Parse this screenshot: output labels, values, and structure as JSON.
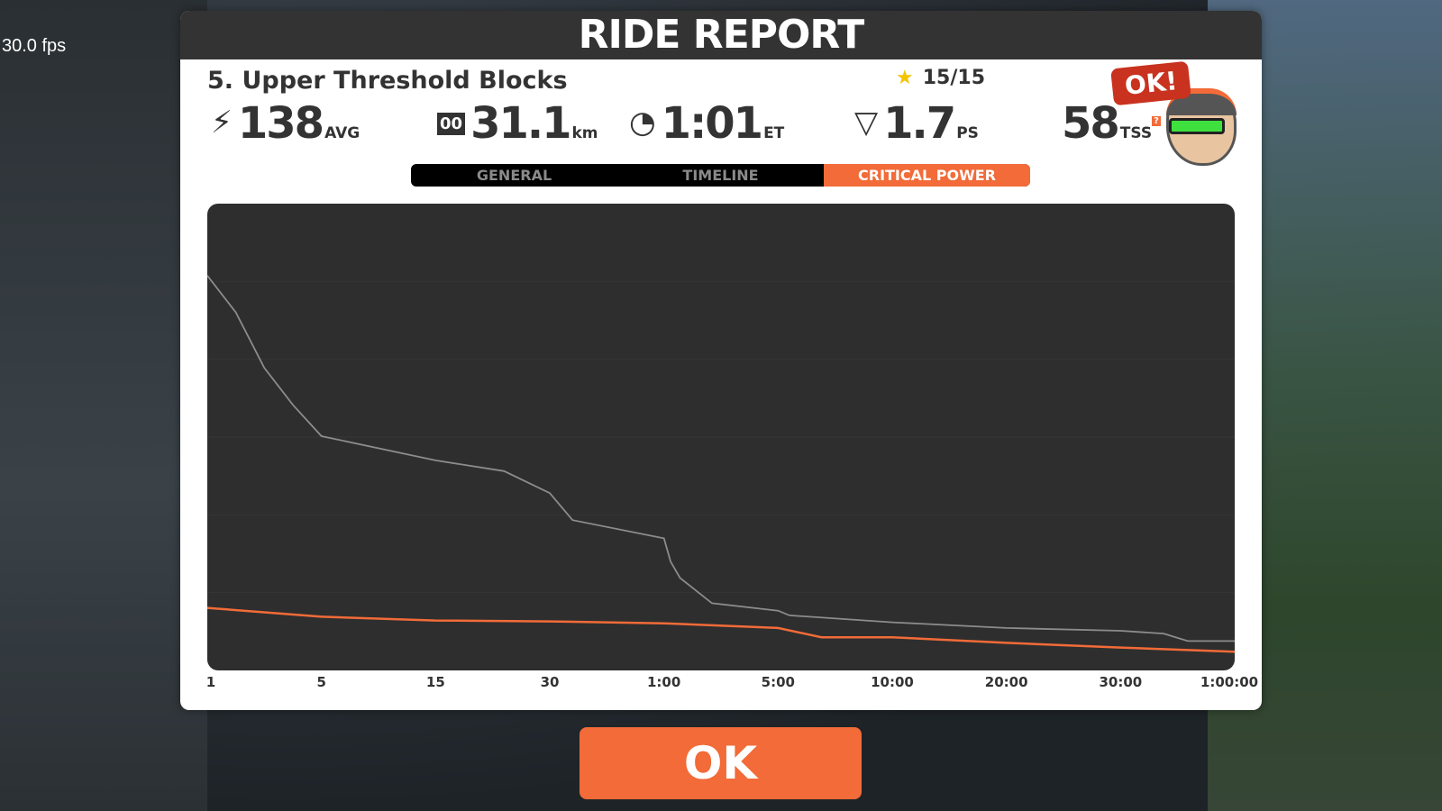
{
  "overlay": {
    "fps": "30.0 fps"
  },
  "header": {
    "title": "RIDE REPORT"
  },
  "workout": {
    "name": "5. Upper Threshold Blocks",
    "stars": "15/15"
  },
  "stats": [
    {
      "icon": "power-bolt-icon",
      "value": "138",
      "unit": "AVG"
    },
    {
      "icon": "odometer-icon",
      "value": "31.1",
      "unit": "km"
    },
    {
      "icon": "clock-icon",
      "value": "1:01",
      "unit": "ET"
    },
    {
      "icon": "pizza-icon",
      "value": "1.7",
      "unit": "PS"
    },
    {
      "icon": "help-icon",
      "value": "58",
      "unit": "TSS"
    }
  ],
  "badge": {
    "text": "OK!"
  },
  "tabs": [
    {
      "label": "GENERAL",
      "active": false
    },
    {
      "label": "TIMELINE",
      "active": false
    },
    {
      "label": "CRITICAL POWER",
      "active": true
    }
  ],
  "colors": {
    "accent": "#f26b38",
    "ride_line": "#f26b38",
    "best_line": "#8c8c8c",
    "chart_bg": "#2e2e2e"
  },
  "chart_data": {
    "type": "line",
    "x_scale": "piecewise (ticks evenly spaced)",
    "x_ticks_seconds": [
      1,
      5,
      15,
      30,
      60,
      300,
      600,
      1200,
      1800,
      3600
    ],
    "x_tick_labels": [
      "1",
      "5",
      "15",
      "30",
      "1:00",
      "5:00",
      "10:00",
      "20:00",
      "30:00",
      "1:00:00"
    ],
    "ylim": [
      0,
      100
    ],
    "grid": true,
    "series": [
      {
        "color": "#8c8c8c",
        "points": [
          [
            1,
            84.6
          ],
          [
            2,
            76.7
          ],
          [
            3,
            64.8
          ],
          [
            4,
            56.9
          ],
          [
            5,
            50.2
          ],
          [
            15,
            45
          ],
          [
            24,
            42.7
          ],
          [
            30,
            38
          ],
          [
            36,
            32.2
          ],
          [
            60,
            28.3
          ],
          [
            74,
            23.3
          ],
          [
            94,
            19.8
          ],
          [
            161,
            14.4
          ],
          [
            300,
            12.8
          ],
          [
            330,
            11.8
          ],
          [
            600,
            10.3
          ],
          [
            1200,
            9.1
          ],
          [
            1800,
            8.5
          ],
          [
            2480,
            7.9
          ],
          [
            2860,
            6.3
          ],
          [
            3600,
            6.3
          ]
        ]
      },
      {
        "color": "#f26b38",
        "points": [
          [
            1,
            13.4
          ],
          [
            5,
            11.5
          ],
          [
            15,
            10.7
          ],
          [
            30,
            10.5
          ],
          [
            60,
            10.1
          ],
          [
            300,
            9.1
          ],
          [
            414,
            7.1
          ],
          [
            600,
            7.1
          ],
          [
            1200,
            5.9
          ],
          [
            1800,
            4.9
          ],
          [
            3600,
            4.0
          ]
        ]
      }
    ]
  },
  "ok_button": {
    "label": "OK"
  }
}
